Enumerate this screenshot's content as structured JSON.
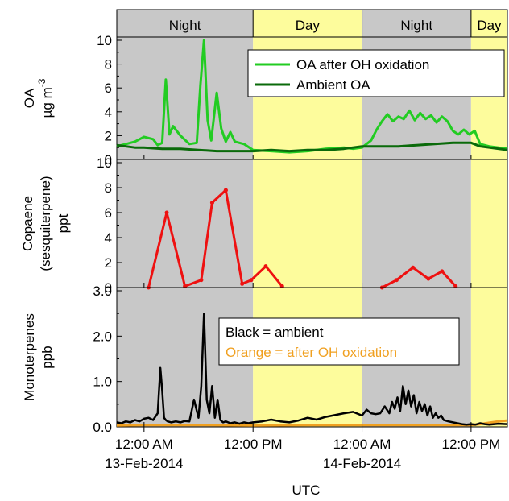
{
  "colors": {
    "night_band": "#c8c8c8",
    "day_band": "#fdfc9c",
    "oa_oxidized": "#22cc22",
    "oa_ambient": "#0a6a0a",
    "copaene": "#ee1111",
    "mt_ambient": "#000000",
    "mt_oxidized": "#f0a020"
  },
  "period_labels": [
    {
      "label": "Night",
      "start": -3,
      "end": 12
    },
    {
      "label": "Day",
      "start": 12,
      "end": 24
    },
    {
      "label": "Night",
      "start": 24,
      "end": 36
    },
    {
      "label": "Day",
      "start": 36,
      "end": 40
    }
  ],
  "x_axis": {
    "title": "UTC",
    "unit_note": "hours from 12:00 AM 13-Feb-2014",
    "range": [
      -3,
      40
    ],
    "ticks": [
      {
        "value": 0,
        "line1": "12:00 AM",
        "line2": "13-Feb-2014"
      },
      {
        "value": 12,
        "line1": "12:00 PM",
        "line2": ""
      },
      {
        "value": 24,
        "line1": "12:00 AM",
        "line2": "14-Feb-2014"
      },
      {
        "value": 36,
        "line1": "12:00 PM",
        "line2": ""
      }
    ]
  },
  "chart_data": [
    {
      "type": "line",
      "ylabel_line1": "OA",
      "ylabel_line2": "µg m",
      "ylabel_sup": "-3",
      "ylim": [
        0,
        10
      ],
      "yticks": [
        "0",
        "2",
        "4",
        "6",
        "8",
        "10"
      ],
      "legend": {
        "placement": "top-right",
        "box": true
      },
      "series": [
        {
          "name": "OA after OH oxidation",
          "color_key": "oa_oxidized",
          "x": [
            -3,
            -2,
            -1,
            0,
            1,
            1.5,
            2,
            2.4,
            2.8,
            3.2,
            4,
            5,
            5.8,
            6.2,
            6.6,
            7,
            7.4,
            8,
            8.5,
            9,
            9.5,
            10,
            11,
            12,
            14,
            16,
            18,
            20,
            22,
            23,
            24,
            25,
            25.6,
            26.2,
            26.8,
            27.4,
            28,
            28.6,
            29.2,
            29.8,
            30.4,
            31,
            31.6,
            32.2,
            32.8,
            33.4,
            34,
            34.6,
            35.2,
            35.8,
            36.4,
            37,
            38,
            39,
            40
          ],
          "y": [
            1.1,
            1.3,
            1.5,
            1.9,
            1.7,
            1.2,
            1.4,
            6.7,
            2.1,
            2.8,
            2.0,
            1.3,
            1.4,
            6.2,
            10.0,
            3.3,
            1.6,
            5.6,
            2.6,
            1.5,
            2.3,
            1.5,
            1.3,
            0.8,
            0.7,
            0.6,
            0.7,
            0.9,
            1.0,
            0.9,
            1.0,
            1.6,
            2.5,
            3.2,
            3.8,
            3.2,
            3.6,
            3.4,
            4.1,
            3.3,
            3.9,
            3.4,
            3.7,
            3.1,
            3.6,
            3.2,
            2.4,
            2.1,
            2.5,
            2.1,
            2.4,
            1.3,
            1.1,
            1.0,
            0.9
          ]
        },
        {
          "name": "Ambient OA",
          "color_key": "oa_ambient",
          "x": [
            -3,
            -2,
            -1,
            0,
            2,
            4,
            6,
            8,
            10,
            12,
            14,
            16,
            18,
            20,
            22,
            24,
            26,
            28,
            30,
            32,
            34,
            36,
            37,
            38,
            40
          ],
          "y": [
            1.2,
            1.1,
            1.0,
            1.0,
            0.9,
            0.9,
            0.8,
            0.7,
            0.7,
            0.7,
            0.8,
            0.7,
            0.8,
            0.8,
            0.9,
            1.1,
            1.1,
            1.1,
            1.2,
            1.3,
            1.4,
            1.4,
            1.1,
            1.0,
            0.8
          ]
        }
      ]
    },
    {
      "type": "line",
      "ylabel_line1": "Copaene",
      "ylabel_line2": "(sesquiterpene)",
      "ylabel_line3": "ppt",
      "ylim": [
        0,
        10
      ],
      "yticks": [
        "0",
        "2",
        "4",
        "6",
        "8",
        "10"
      ],
      "series": [
        {
          "name": "",
          "color_key": "copaene",
          "segments": [
            {
              "x": [
                0.5,
                2.5,
                4.5,
                6.3,
                7.5,
                9.0
              ],
              "y": [
                0,
                6.0,
                0.1,
                0.6,
                6.8,
                7.8
              ]
            },
            {
              "x": [
                9.0,
                10.8,
                11.8,
                13.4,
                15.2
              ],
              "y": [
                7.8,
                0.3,
                0.6,
                1.7,
                0.1
              ]
            },
            {
              "x": [
                26.2,
                27.8,
                29.6,
                31.3,
                32.8,
                34.3
              ],
              "y": [
                0,
                0.6,
                1.6,
                0.7,
                1.3,
                0.1
              ]
            }
          ]
        }
      ]
    },
    {
      "type": "line",
      "ylabel_line1": "Monoterpenes",
      "ylabel_line2": "ppb",
      "ylim": [
        0,
        3.0
      ],
      "yticks": [
        "0.0",
        "1.0",
        "2.0",
        "3.0"
      ],
      "legend_text": {
        "line1": "Black = ambient",
        "line2": "Orange = after OH oxidation",
        "placement": "right"
      },
      "series": [
        {
          "name": "Black = ambient",
          "color_key": "mt_ambient",
          "x": [
            -3,
            -2.5,
            -2,
            -1.5,
            -1,
            -0.5,
            0,
            0.5,
            1,
            1.5,
            1.8,
            2.0,
            2.2,
            2.4,
            2.6,
            3,
            3.5,
            4,
            4.5,
            5,
            5.5,
            6,
            6.3,
            6.6,
            6.9,
            7.2,
            7.5,
            7.8,
            8.1,
            8.4,
            8.7,
            9,
            9.5,
            10,
            10.5,
            11,
            11.5,
            12,
            13,
            14,
            15,
            16,
            17,
            18,
            19,
            20,
            21,
            22,
            23,
            24,
            24.5,
            25,
            25.5,
            26,
            26.5,
            27,
            27.3,
            27.6,
            27.9,
            28.2,
            28.5,
            28.8,
            29.1,
            29.4,
            29.7,
            30,
            30.3,
            30.6,
            30.9,
            31.2,
            31.5,
            31.8,
            32.1,
            32.4,
            32.7,
            33,
            33.5,
            34,
            34.5,
            35,
            35.5,
            36,
            36.5,
            37,
            37.5,
            38,
            39,
            40
          ],
          "y": [
            0.1,
            0.08,
            0.12,
            0.1,
            0.15,
            0.12,
            0.18,
            0.2,
            0.15,
            0.3,
            1.3,
            0.8,
            0.2,
            0.15,
            0.12,
            0.1,
            0.12,
            0.1,
            0.13,
            0.12,
            0.6,
            0.2,
            0.9,
            2.5,
            0.6,
            0.3,
            0.9,
            0.2,
            0.6,
            0.15,
            0.1,
            0.12,
            0.08,
            0.1,
            0.07,
            0.1,
            0.08,
            0.1,
            0.12,
            0.16,
            0.12,
            0.1,
            0.14,
            0.2,
            0.16,
            0.22,
            0.26,
            0.3,
            0.33,
            0.25,
            0.38,
            0.3,
            0.28,
            0.3,
            0.45,
            0.3,
            0.55,
            0.4,
            0.65,
            0.35,
            0.9,
            0.5,
            0.8,
            0.45,
            0.7,
            0.3,
            0.55,
            0.35,
            0.5,
            0.25,
            0.45,
            0.2,
            0.3,
            0.2,
            0.25,
            0.15,
            0.12,
            0.1,
            0.08,
            0.06,
            0.05,
            0.06,
            0.05,
            0.08,
            0.06,
            0.05,
            0.07,
            0.06
          ]
        },
        {
          "name": "Orange = after OH oxidation",
          "color_key": "mt_oxidized",
          "x": [
            -3,
            0,
            6,
            12,
            18,
            24,
            30,
            34,
            36,
            37,
            38,
            39,
            40
          ],
          "y": [
            0.03,
            0.04,
            0.04,
            0.03,
            0.04,
            0.04,
            0.04,
            0.04,
            0.04,
            0.06,
            0.09,
            0.12,
            0.14
          ]
        }
      ]
    }
  ]
}
